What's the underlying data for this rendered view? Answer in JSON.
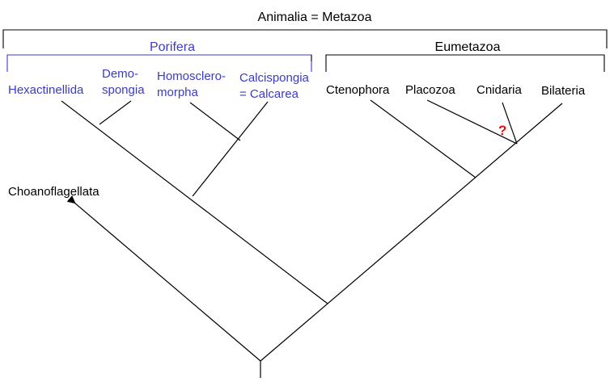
{
  "diagram": {
    "title": "Animalia = Metazoa",
    "groups": {
      "porifera": "Porifera",
      "eumetazoa": "Eumetazoa"
    },
    "taxa": {
      "hexactinellida": [
        "Hexactinellida"
      ],
      "demospongia": [
        "Demo-",
        "spongia"
      ],
      "homoscleromorpha": [
        "Homosclero-",
        "morpha"
      ],
      "calcispongia": [
        "Calcispongia",
        "= Calcarea"
      ],
      "ctenophora": [
        "Ctenophora"
      ],
      "placozoa": [
        "Placozoa"
      ],
      "cnidaria": [
        "Cnidaria"
      ],
      "bilateria": [
        "Bilateria"
      ],
      "choanoflagellata": [
        "Choanoflagellata"
      ]
    },
    "uncertain_mark": "?",
    "colors": {
      "porifera": "#3b3bc8",
      "line": "#000000",
      "uncertain": "#e01010"
    }
  }
}
